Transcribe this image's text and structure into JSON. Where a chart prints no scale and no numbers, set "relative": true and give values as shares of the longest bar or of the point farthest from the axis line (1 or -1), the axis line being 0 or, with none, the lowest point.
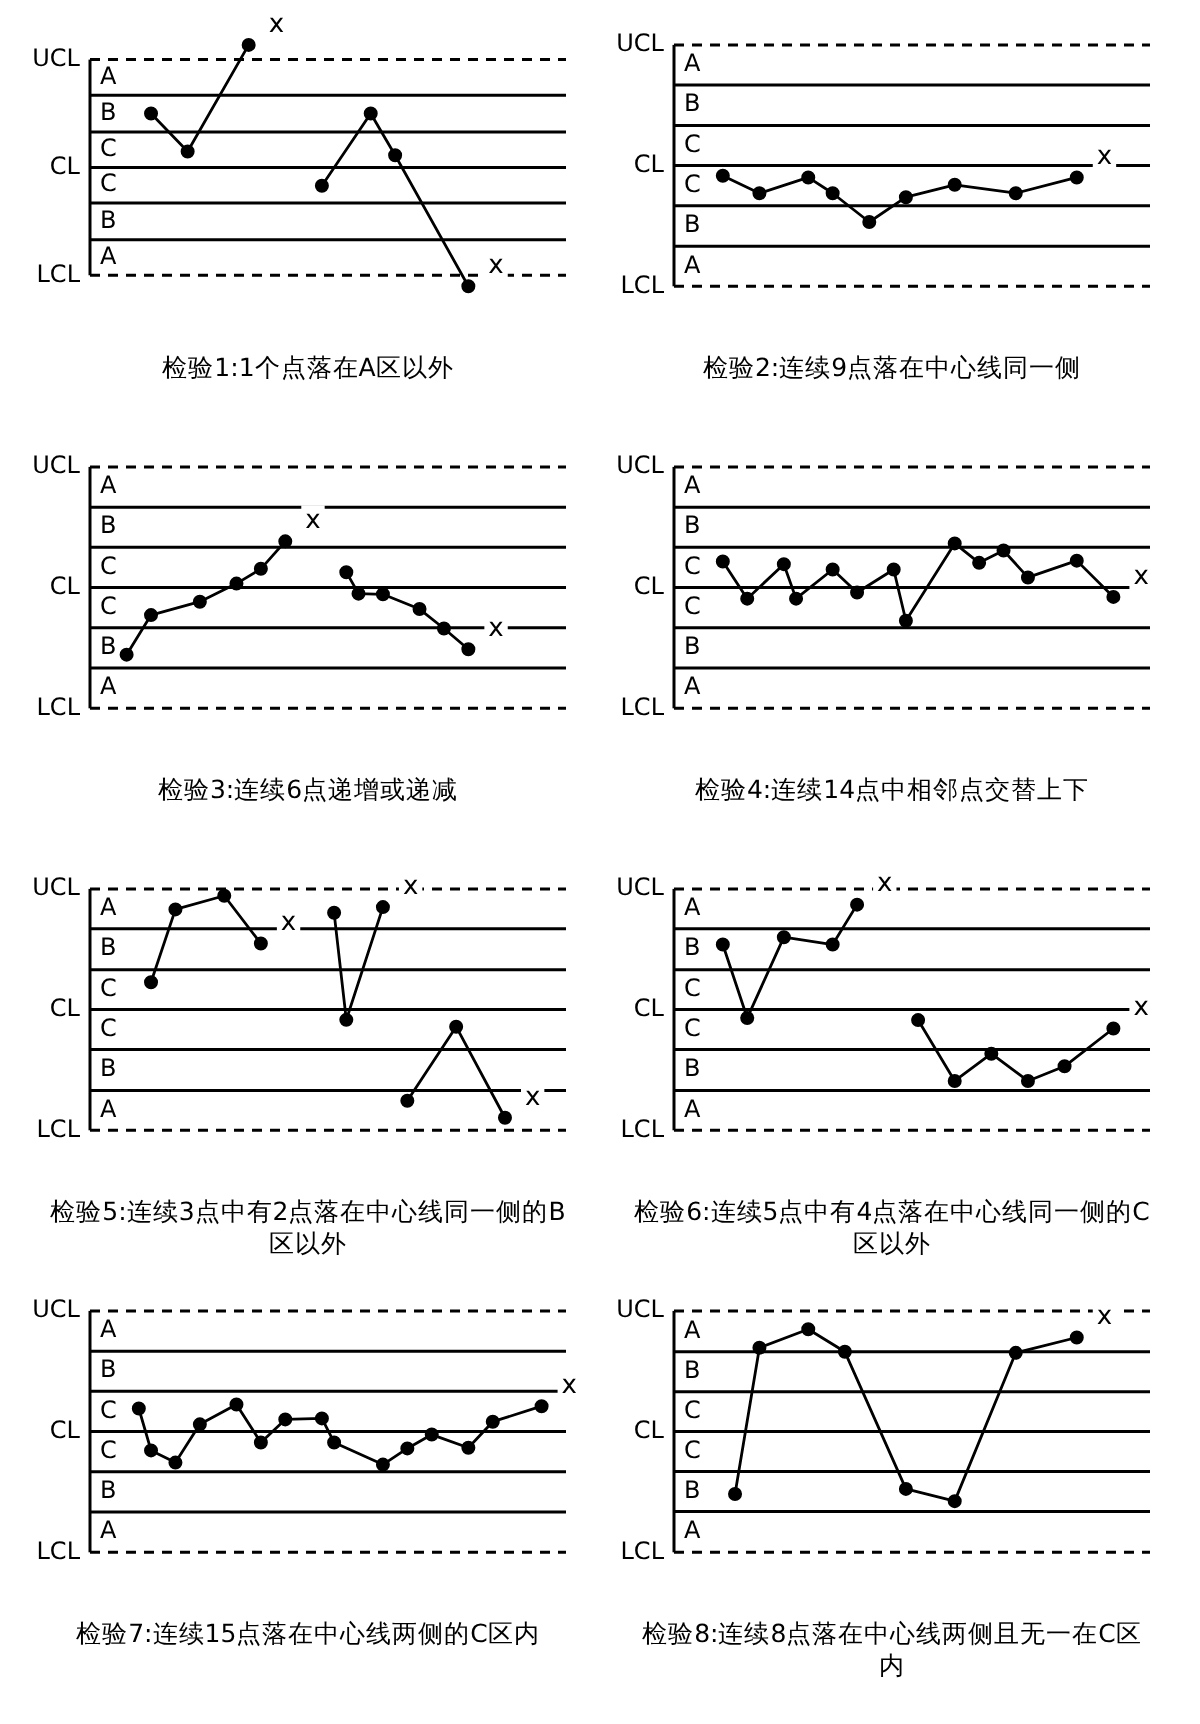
{
  "chart_data": [
    {
      "type": "line",
      "title": "检验1:1个点落在A区以外",
      "relative": true,
      "categories": [
        null,
        null,
        null,
        null,
        null,
        null,
        null,
        null,
        null,
        null,
        null,
        null,
        null,
        null,
        null,
        null,
        null,
        null,
        null,
        null,
        null,
        null,
        null,
        null,
        null,
        null,
        null,
        null,
        null,
        null,
        null,
        null,
        null,
        null,
        null,
        null,
        null,
        null,
        null,
        null
      ],
      "series": [
        {
          "color": "#000000",
          "values": [
            null,
            null,
            null,
            null,
            null,
            0.44,
            null,
            null,
            0.13,
            null,
            null,
            null,
            null,
            1,
            null,
            null,
            null,
            null,
            null,
            null,
            null,
            null,
            null,
            null,
            null,
            null,
            null,
            null,
            null,
            null,
            null,
            null,
            null,
            null,
            null,
            null,
            null,
            null,
            null,
            null
          ]
        },
        {
          "color": "#000000",
          "values": [
            null,
            null,
            null,
            null,
            null,
            null,
            null,
            null,
            null,
            null,
            null,
            null,
            null,
            null,
            null,
            null,
            null,
            null,
            null,
            -0.15,
            null,
            null,
            null,
            0.44,
            null,
            0.1,
            null,
            null,
            null,
            null,
            null,
            -0.97,
            null,
            null,
            null,
            null,
            null,
            null,
            null,
            null
          ]
        }
      ],
      "marker": "circle",
      "line_style": "solid",
      "ref_lines": [
        {
          "axis": "y",
          "value": 0.88,
          "label": "UCL",
          "line_style": "dashed"
        },
        {
          "axis": "y",
          "value": 0.59
        },
        {
          "axis": "y",
          "value": 0.29
        },
        {
          "axis": "y",
          "value": 0,
          "label": "CL"
        },
        {
          "axis": "y",
          "value": -0.29
        },
        {
          "axis": "y",
          "value": -0.59
        },
        {
          "axis": "y",
          "value": -0.88,
          "label": "LCL",
          "line_style": "dashed"
        }
      ],
      "annotations": [
        "A",
        "B",
        "C",
        "C",
        "B",
        "A",
        "x",
        "x"
      ]
    },
    {
      "type": "line",
      "title": "检验2:连续9点落在中心线同一侧",
      "relative": true,
      "categories": [
        null,
        null,
        null,
        null,
        null,
        null,
        null,
        null,
        null,
        null,
        null,
        null,
        null,
        null,
        null,
        null,
        null,
        null,
        null,
        null,
        null,
        null,
        null,
        null,
        null,
        null,
        null,
        null,
        null,
        null,
        null,
        null,
        null,
        null,
        null,
        null,
        null,
        null,
        null,
        null
      ],
      "series": [
        {
          "color": "#000000",
          "values": [
            null,
            null,
            null,
            null,
            -0.18,
            null,
            null,
            -0.49,
            null,
            null,
            null,
            -0.21,
            null,
            -0.49,
            null,
            null,
            -1,
            null,
            null,
            -0.56,
            null,
            null,
            null,
            -0.34,
            null,
            null,
            null,
            null,
            -0.49,
            null,
            null,
            null,
            null,
            -0.21,
            null,
            null,
            null,
            null,
            null,
            null
          ]
        }
      ],
      "marker": "circle",
      "line_style": "solid",
      "ref_lines": [
        {
          "axis": "y",
          "value": 2.14,
          "label": "UCL",
          "line_style": "dashed"
        },
        {
          "axis": "y",
          "value": 1.43
        },
        {
          "axis": "y",
          "value": 0.71
        },
        {
          "axis": "y",
          "value": 0,
          "label": "CL"
        },
        {
          "axis": "y",
          "value": -0.71
        },
        {
          "axis": "y",
          "value": -1.43
        },
        {
          "axis": "y",
          "value": -2.14,
          "label": "LCL",
          "line_style": "dashed"
        }
      ],
      "annotations": [
        "A",
        "B",
        "C",
        "C",
        "B",
        "A",
        "x"
      ]
    },
    {
      "type": "line",
      "title": "检验3:连续6点递增或递减",
      "relative": true,
      "categories": [
        null,
        null,
        null,
        null,
        null,
        null,
        null,
        null,
        null,
        null,
        null,
        null,
        null,
        null,
        null,
        null,
        null,
        null,
        null,
        null,
        null,
        null,
        null,
        null,
        null,
        null,
        null,
        null,
        null,
        null,
        null,
        null,
        null,
        null,
        null,
        null,
        null,
        null,
        null,
        null
      ],
      "series": [
        {
          "color": "#000000",
          "values": [
            null,
            null,
            null,
            -1,
            null,
            -0.41,
            null,
            null,
            null,
            -0.21,
            null,
            null,
            0.06,
            null,
            0.28,
            null,
            0.69,
            null,
            null,
            null,
            null,
            null,
            null,
            null,
            null,
            null,
            null,
            null,
            null,
            null,
            null,
            null,
            null,
            null,
            null,
            null,
            null,
            null,
            null,
            null
          ]
        },
        {
          "color": "#000000",
          "values": [
            null,
            null,
            null,
            null,
            null,
            null,
            null,
            null,
            null,
            null,
            null,
            null,
            null,
            null,
            null,
            null,
            null,
            null,
            null,
            null,
            null,
            0.23,
            -0.09,
            null,
            -0.1,
            null,
            null,
            -0.32,
            null,
            -0.61,
            null,
            -0.92,
            null,
            null,
            null,
            null,
            null,
            null,
            null,
            null
          ]
        }
      ],
      "marker": "circle",
      "line_style": "solid",
      "ref_lines": [
        {
          "axis": "y",
          "value": 1.8,
          "label": "UCL",
          "line_style": "dashed"
        },
        {
          "axis": "y",
          "value": 1.2
        },
        {
          "axis": "y",
          "value": 0.6
        },
        {
          "axis": "y",
          "value": 0,
          "label": "CL"
        },
        {
          "axis": "y",
          "value": -0.6
        },
        {
          "axis": "y",
          "value": -1.2
        },
        {
          "axis": "y",
          "value": -1.8,
          "label": "LCL",
          "line_style": "dashed"
        }
      ],
      "annotations": [
        "A",
        "B",
        "C",
        "C",
        "B",
        "A",
        "x",
        "x"
      ]
    },
    {
      "type": "line",
      "title": "检验4:连续14点中相邻点交替上下",
      "relative": true,
      "categories": [
        null,
        null,
        null,
        null,
        null,
        null,
        null,
        null,
        null,
        null,
        null,
        null,
        null,
        null,
        null,
        null,
        null,
        null,
        null,
        null,
        null,
        null,
        null,
        null,
        null,
        null,
        null,
        null,
        null,
        null,
        null,
        null,
        null,
        null,
        null,
        null,
        null,
        null,
        null,
        null
      ],
      "series": [
        {
          "color": "#000000",
          "values": [
            null,
            null,
            null,
            null,
            0.59,
            null,
            -0.25,
            null,
            null,
            0.53,
            -0.25,
            null,
            null,
            0.41,
            null,
            -0.11,
            null,
            null,
            0.41,
            -0.75,
            null,
            null,
            null,
            1,
            null,
            0.56,
            null,
            0.84,
            null,
            0.23,
            null,
            null,
            null,
            0.61,
            null,
            null,
            -0.21,
            null,
            null,
            null
          ]
        }
      ],
      "marker": "circle",
      "line_style": "solid",
      "ref_lines": [
        {
          "axis": "y",
          "value": 2.73,
          "label": "UCL",
          "line_style": "dashed"
        },
        {
          "axis": "y",
          "value": 1.82
        },
        {
          "axis": "y",
          "value": 0.91
        },
        {
          "axis": "y",
          "value": 0,
          "label": "CL"
        },
        {
          "axis": "y",
          "value": -0.91
        },
        {
          "axis": "y",
          "value": -1.82
        },
        {
          "axis": "y",
          "value": -2.73,
          "label": "LCL",
          "line_style": "dashed"
        }
      ],
      "annotations": [
        "A",
        "B",
        "C",
        "C",
        "B",
        "A",
        "x"
      ]
    },
    {
      "type": "line",
      "title": "检验5:连续3点中有2点落在中心线同一侧的B区以外",
      "relative": true,
      "categories": [
        null,
        null,
        null,
        null,
        null,
        null,
        null,
        null,
        null,
        null,
        null,
        null,
        null,
        null,
        null,
        null,
        null,
        null,
        null,
        null,
        null,
        null,
        null,
        null,
        null,
        null,
        null,
        null,
        null,
        null,
        null,
        null,
        null,
        null,
        null,
        null,
        null,
        null,
        null,
        null
      ],
      "series": [
        {
          "color": "#000000",
          "values": [
            null,
            null,
            null,
            null,
            null,
            0.24,
            null,
            0.88,
            null,
            null,
            null,
            1,
            null,
            null,
            0.58,
            null,
            null,
            null,
            null,
            null,
            null,
            null,
            null,
            null,
            null,
            null,
            null,
            null,
            null,
            null,
            null,
            null,
            null,
            null,
            null,
            null,
            null,
            null,
            null,
            null
          ]
        },
        {
          "color": "#000000",
          "values": [
            null,
            null,
            null,
            null,
            null,
            null,
            null,
            null,
            null,
            null,
            null,
            null,
            null,
            null,
            null,
            null,
            null,
            null,
            null,
            null,
            0.85,
            -0.09,
            null,
            null,
            0.9,
            null,
            null,
            null,
            null,
            null,
            null,
            null,
            null,
            null,
            null,
            null,
            null,
            null,
            null,
            null
          ]
        },
        {
          "color": "#000000",
          "values": [
            null,
            null,
            null,
            null,
            null,
            null,
            null,
            null,
            null,
            null,
            null,
            null,
            null,
            null,
            null,
            null,
            null,
            null,
            null,
            null,
            null,
            null,
            null,
            null,
            null,
            null,
            -0.8,
            null,
            null,
            null,
            -0.15,
            null,
            null,
            null,
            -0.95,
            null,
            null,
            null,
            null,
            null
          ]
        }
      ],
      "marker": "circle",
      "line_style": "solid",
      "ref_lines": [
        {
          "axis": "y",
          "value": 1.06,
          "label": "UCL",
          "line_style": "dashed"
        },
        {
          "axis": "y",
          "value": 0.71
        },
        {
          "axis": "y",
          "value": 0.35
        },
        {
          "axis": "y",
          "value": 0,
          "label": "CL"
        },
        {
          "axis": "y",
          "value": -0.35
        },
        {
          "axis": "y",
          "value": -0.71
        },
        {
          "axis": "y",
          "value": -1.06,
          "label": "LCL",
          "line_style": "dashed"
        }
      ],
      "annotations": [
        "A",
        "B",
        "C",
        "C",
        "B",
        "A",
        "x",
        "x",
        "x"
      ]
    },
    {
      "type": "line",
      "title": "检验6:连续5点中有4点落在中心线同一侧的C区以外",
      "relative": true,
      "categories": [
        null,
        null,
        null,
        null,
        null,
        null,
        null,
        null,
        null,
        null,
        null,
        null,
        null,
        null,
        null,
        null,
        null,
        null,
        null,
        null,
        null,
        null,
        null,
        null,
        null,
        null,
        null,
        null,
        null,
        null,
        null,
        null,
        null,
        null,
        null,
        null,
        null,
        null,
        null,
        null
      ],
      "series": [
        {
          "color": "#000000",
          "values": [
            null,
            null,
            null,
            null,
            0.62,
            null,
            -0.08,
            null,
            null,
            0.69,
            null,
            null,
            null,
            0.62,
            null,
            1,
            null,
            null,
            null,
            null,
            null,
            null,
            null,
            null,
            null,
            null,
            null,
            null,
            null,
            null,
            null,
            null,
            null,
            null,
            null,
            null,
            null,
            null,
            null,
            null
          ]
        },
        {
          "color": "#000000",
          "values": [
            null,
            null,
            null,
            null,
            null,
            null,
            null,
            null,
            null,
            null,
            null,
            null,
            null,
            null,
            null,
            null,
            null,
            null,
            null,
            null,
            -0.1,
            null,
            null,
            -0.68,
            null,
            null,
            -0.42,
            null,
            null,
            -0.68,
            null,
            null,
            -0.54,
            null,
            null,
            null,
            -0.18,
            null,
            null,
            null
          ]
        }
      ],
      "marker": "circle",
      "line_style": "solid",
      "ref_lines": [
        {
          "axis": "y",
          "value": 1.15,
          "label": "UCL",
          "line_style": "dashed"
        },
        {
          "axis": "y",
          "value": 0.77
        },
        {
          "axis": "y",
          "value": 0.38
        },
        {
          "axis": "y",
          "value": 0,
          "label": "CL"
        },
        {
          "axis": "y",
          "value": -0.38
        },
        {
          "axis": "y",
          "value": -0.77
        },
        {
          "axis": "y",
          "value": -1.15,
          "label": "LCL",
          "line_style": "dashed"
        }
      ],
      "annotations": [
        "A",
        "B",
        "C",
        "C",
        "B",
        "A",
        "x",
        "x"
      ]
    },
    {
      "type": "line",
      "title": "检验7:连续15点落在中心线两侧的C区内",
      "relative": true,
      "categories": [
        null,
        null,
        null,
        null,
        null,
        null,
        null,
        null,
        null,
        null,
        null,
        null,
        null,
        null,
        null,
        null,
        null,
        null,
        null,
        null,
        null,
        null,
        null,
        null,
        null,
        null,
        null,
        null,
        null,
        null,
        null,
        null,
        null,
        null,
        null,
        null,
        null,
        null,
        null,
        null
      ],
      "series": [
        {
          "color": "#000000",
          "values": [
            null,
            null,
            null,
            null,
            0.7,
            -0.57,
            null,
            -0.94,
            null,
            0.22,
            null,
            null,
            0.82,
            null,
            -0.33,
            null,
            0.37,
            null,
            null,
            0.4,
            -0.33,
            null,
            null,
            null,
            -1,
            null,
            -0.51,
            null,
            -0.09,
            null,
            null,
            -0.49,
            null,
            0.3,
            null,
            null,
            null,
            0.77,
            null,
            null
          ]
        }
      ],
      "marker": "circle",
      "line_style": "solid",
      "ref_lines": [
        {
          "axis": "y",
          "value": 3.66,
          "label": "UCL",
          "line_style": "dashed"
        },
        {
          "axis": "y",
          "value": 2.44
        },
        {
          "axis": "y",
          "value": 1.22
        },
        {
          "axis": "y",
          "value": 0,
          "label": "CL"
        },
        {
          "axis": "y",
          "value": -1.22
        },
        {
          "axis": "y",
          "value": -2.44
        },
        {
          "axis": "y",
          "value": -3.66,
          "label": "LCL",
          "line_style": "dashed"
        }
      ],
      "annotations": [
        "A",
        "B",
        "C",
        "C",
        "B",
        "A",
        "x"
      ]
    },
    {
      "type": "line",
      "title": "检验8:连续8点落在中心线两侧且无一在C区内",
      "relative": true,
      "categories": [
        null,
        null,
        null,
        null,
        null,
        null,
        null,
        null,
        null,
        null,
        null,
        null,
        null,
        null,
        null,
        null,
        null,
        null,
        null,
        null,
        null,
        null,
        null,
        null,
        null,
        null,
        null,
        null,
        null,
        null,
        null,
        null,
        null,
        null,
        null,
        null,
        null,
        null,
        null,
        null
      ],
      "series": [
        {
          "color": "#000000",
          "values": [
            null,
            null,
            null,
            null,
            null,
            -0.61,
            null,
            0.82,
            null,
            null,
            null,
            1,
            null,
            null,
            0.78,
            null,
            null,
            null,
            null,
            -0.56,
            null,
            null,
            null,
            -0.68,
            null,
            null,
            null,
            null,
            0.77,
            null,
            null,
            null,
            null,
            0.92,
            null,
            null,
            null,
            null,
            null,
            null
          ]
        }
      ],
      "marker": "circle",
      "line_style": "solid",
      "ref_lines": [
        {
          "axis": "y",
          "value": 1.18,
          "label": "UCL",
          "line_style": "dashed"
        },
        {
          "axis": "y",
          "value": 0.78
        },
        {
          "axis": "y",
          "value": 0.39
        },
        {
          "axis": "y",
          "value": 0,
          "label": "CL"
        },
        {
          "axis": "y",
          "value": -0.39
        },
        {
          "axis": "y",
          "value": -0.78
        },
        {
          "axis": "y",
          "value": -1.18,
          "label": "LCL",
          "line_style": "dashed"
        }
      ],
      "annotations": [
        "A",
        "B",
        "C",
        "C",
        "B",
        "A",
        "x"
      ]
    }
  ]
}
